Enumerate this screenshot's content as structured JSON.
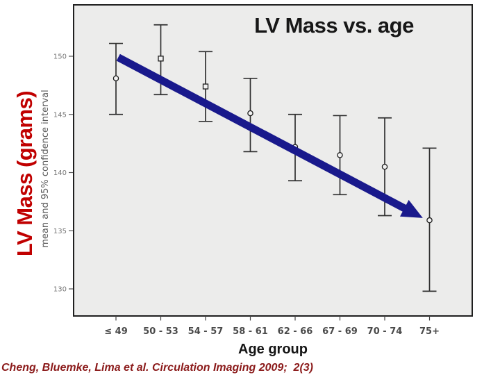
{
  "title": "LV Mass vs. age",
  "y_axis": {
    "title": "LV Mass (grams)",
    "subtitle": "mean and 95% confidence interval"
  },
  "x_axis": {
    "title": "Age group"
  },
  "citation": "Cheng, Bluemke, Lima et al. Circulation Imaging 2009;  2(3)",
  "colors": {
    "arrow": "#19198c",
    "y_axis_title": "#c00000",
    "citation": "#8b1a1a",
    "plot_bg": "#ececeb",
    "plot_border": "#1f1f1f",
    "error_bar": "#303030",
    "tick_label": "#757575",
    "category_label": "#4a4a4a",
    "title_text": "#171717"
  },
  "chart_data": {
    "type": "scatter",
    "subtype": "error-bar (mean with 95% CI)",
    "title": "LV Mass vs. age",
    "xlabel": "Age group",
    "ylabel": "LV Mass (grams) — mean and 95% confidence interval",
    "categories": [
      "≤ 49",
      "50 - 53",
      "54 - 57",
      "58 - 61",
      "62 - 66",
      "67 - 69",
      "70 - 74",
      "75+"
    ],
    "series": [
      {
        "name": "mean",
        "values": [
          148.1,
          149.8,
          147.4,
          145.1,
          142.2,
          141.5,
          140.5,
          135.9
        ]
      },
      {
        "name": "ci_lower",
        "values": [
          145.0,
          146.7,
          144.4,
          141.8,
          139.3,
          138.1,
          136.3,
          129.8
        ]
      },
      {
        "name": "ci_upper",
        "values": [
          151.1,
          152.7,
          150.4,
          148.1,
          145.0,
          144.9,
          144.7,
          142.1
        ]
      }
    ],
    "markers": [
      "circle",
      "square",
      "square",
      "circle",
      "circle",
      "circle",
      "circle",
      "circle"
    ],
    "ylim": [
      128,
      153.5
    ],
    "yticks": [
      130,
      135,
      140,
      145,
      150
    ],
    "grid": false,
    "legend": "none",
    "annotation": {
      "type": "trend-arrow",
      "direction": "decreasing",
      "from": {
        "index": 0.05,
        "value": 149.9
      },
      "to": {
        "index": 6.85,
        "value": 136.1
      }
    }
  }
}
